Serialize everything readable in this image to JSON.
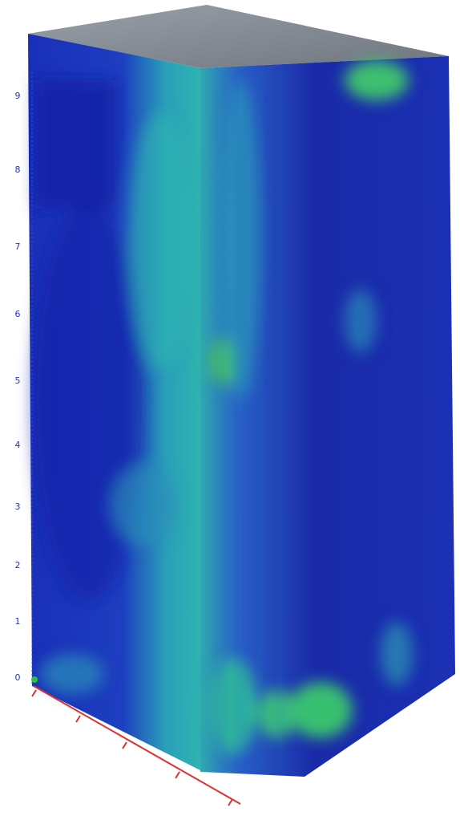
{
  "axis": {
    "tick_labels": [
      "9",
      "8",
      "7",
      "6",
      "5",
      "4",
      "3",
      "2",
      "1",
      "0"
    ]
  }
}
